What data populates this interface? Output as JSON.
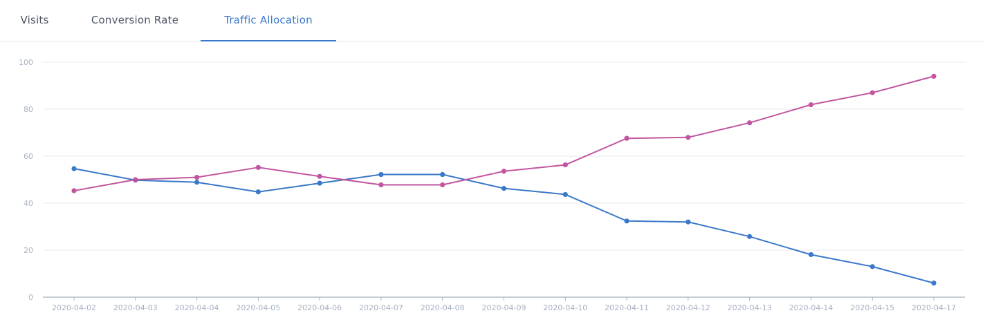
{
  "tabs": [
    {
      "label": "Visits",
      "active": false
    },
    {
      "label": "Conversion Rate",
      "active": false
    },
    {
      "label": "Traffic Allocation",
      "active": true
    }
  ],
  "colors": {
    "accent": "#3a78c9",
    "series_a": "#3a78c9",
    "series_b": "#c2559f",
    "grid": "#e8e8ec",
    "axis": "#a8b0bc",
    "tick_text": "#a7b1c2"
  },
  "chart_data": {
    "type": "line",
    "x": [
      "2020-04-02",
      "2020-04-03",
      "2020-04-04",
      "2020-04-05",
      "2020-04-06",
      "2020-04-07",
      "2020-04-08",
      "2020-04-09",
      "2020-04-10",
      "2020-04-11",
      "2020-04-12",
      "2020-04-13",
      "2020-04-14",
      "2020-04-15",
      "2020-04-17"
    ],
    "series": [
      {
        "color": "#3a78c9",
        "values": [
          54.7,
          49.8,
          48.9,
          44.8,
          48.5,
          52.2,
          52.2,
          46.3,
          43.7,
          32.4,
          32.0,
          25.8,
          18.1,
          13.0,
          6.0
        ]
      },
      {
        "color": "#c2559f",
        "values": [
          45.3,
          50.0,
          51.0,
          55.2,
          51.4,
          47.8,
          47.8,
          53.6,
          56.3,
          67.6,
          68.0,
          74.2,
          81.9,
          87.0,
          94.0
        ]
      }
    ],
    "yticks": [
      0,
      20,
      40,
      60,
      80,
      100
    ],
    "ylim": [
      0,
      100
    ],
    "grid": true,
    "legend": "none"
  }
}
